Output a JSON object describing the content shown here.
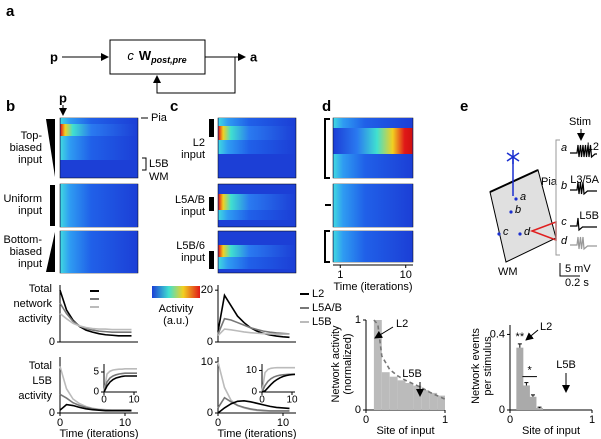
{
  "panel_a": {
    "label": "a",
    "input": "p",
    "gain": "c",
    "matrix": "W",
    "subscript": "post,pre",
    "output": "a"
  },
  "panel_b": {
    "label": "b",
    "input_marker": "p",
    "row_labels": [
      [
        "Top-",
        "biased",
        "input"
      ],
      [
        "Uniform",
        "input"
      ],
      [
        "Bottom-",
        "biased",
        "input"
      ]
    ],
    "layer_labels": {
      "pia": "Pia",
      "l5b": "L5B",
      "wm": "WM"
    },
    "colorbar_label": [
      "Activity",
      "(a.u.)"
    ],
    "network_chart": {
      "type": "line",
      "ylabel": [
        "Total",
        "network",
        "activity"
      ],
      "x": [
        0,
        1,
        2,
        3,
        4,
        5,
        6,
        7,
        8,
        9,
        10,
        11
      ],
      "xlim": [
        0,
        12
      ],
      "ylim": [
        0,
        1.1
      ],
      "yticks": [
        0
      ],
      "series": [
        {
          "color": "#000000",
          "values": [
            1.0,
            0.62,
            0.42,
            0.3,
            0.23,
            0.19,
            0.16,
            0.14,
            0.13,
            0.12,
            0.12,
            0.12
          ]
        },
        {
          "color": "#777777",
          "values": [
            0.75,
            0.55,
            0.4,
            0.31,
            0.26,
            0.23,
            0.21,
            0.2,
            0.19,
            0.19,
            0.19,
            0.19
          ]
        },
        {
          "color": "#bbbbbb",
          "values": [
            0.55,
            0.45,
            0.36,
            0.31,
            0.28,
            0.26,
            0.25,
            0.25,
            0.24,
            0.24,
            0.24,
            0.24
          ]
        }
      ]
    },
    "l5b_chart": {
      "type": "line",
      "ylabel": [
        "Total",
        "L5B",
        "activity"
      ],
      "xlabel": "Time (iterations)",
      "x": [
        0,
        1,
        2,
        3,
        4,
        5,
        6,
        7,
        8,
        9,
        10,
        11
      ],
      "xlim": [
        0,
        12
      ],
      "ylim": [
        0,
        6
      ],
      "xticks": [
        0,
        10
      ],
      "yticks": [
        0
      ],
      "series": [
        {
          "color": "#bbbbbb",
          "values": [
            5.0,
            2.6,
            1.5,
            1.0,
            0.7,
            0.5,
            0.4,
            0.35,
            0.3,
            0.3,
            0.3,
            0.3
          ]
        },
        {
          "color": "#777777",
          "values": [
            2.0,
            1.6,
            1.1,
            0.8,
            0.6,
            0.45,
            0.35,
            0.3,
            0.3,
            0.3,
            0.3,
            0.3
          ]
        },
        {
          "color": "#000000",
          "values": [
            0.3,
            0.9,
            0.8,
            0.6,
            0.45,
            0.35,
            0.3,
            0.25,
            0.25,
            0.25,
            0.25,
            0.25
          ]
        }
      ]
    },
    "l5b_inset": {
      "type": "line",
      "x": [
        0,
        1,
        2,
        3,
        4,
        5,
        6,
        7,
        8,
        9,
        10,
        11
      ],
      "xlim": [
        0,
        11
      ],
      "ylim": [
        0,
        7
      ],
      "xticks": [
        0,
        10
      ],
      "yticks": [
        0,
        5
      ],
      "series": [
        {
          "color": "#bbbbbb",
          "values": [
            0,
            4.5,
            5.2,
            5.5,
            5.6,
            5.7,
            5.7,
            5.8,
            5.8,
            5.8,
            5.8,
            5.8
          ]
        },
        {
          "color": "#777777",
          "values": [
            0,
            2.5,
            3.5,
            4.0,
            4.3,
            4.5,
            4.6,
            4.7,
            4.7,
            4.7,
            4.7,
            4.7
          ]
        },
        {
          "color": "#000000",
          "values": [
            0,
            1.5,
            2.5,
            3.1,
            3.5,
            3.7,
            3.9,
            4.0,
            4.0,
            4.0,
            4.0,
            4.0
          ]
        }
      ]
    }
  },
  "panel_c": {
    "label": "c",
    "row_labels": [
      [
        "L2",
        "input"
      ],
      [
        "L5A/B",
        "input"
      ],
      [
        "L5B/6",
        "input"
      ]
    ],
    "network_chart": {
      "type": "line",
      "x": [
        0,
        1,
        2,
        3,
        4,
        5,
        6,
        7,
        8,
        9,
        10,
        11
      ],
      "xlim": [
        0,
        12
      ],
      "ylim": [
        0,
        22
      ],
      "yticks": [
        0,
        20
      ],
      "series": [
        {
          "name": "L2",
          "color": "#000000",
          "values": [
            4,
            18,
            14,
            10,
            7.5,
            5.5,
            4.2,
            3.3,
            2.7,
            2.3,
            2,
            1.8
          ]
        },
        {
          "name": "L5A/B",
          "color": "#777777",
          "values": [
            3,
            9,
            8.5,
            7.5,
            6.5,
            5.5,
            4.8,
            4.2,
            3.8,
            3.5,
            3.3,
            3.1
          ]
        },
        {
          "name": "L5B",
          "color": "#bbbbbb",
          "values": [
            2.5,
            5,
            4.7,
            4.3,
            3.9,
            3.6,
            3.4,
            3.2,
            3.1,
            3,
            3,
            3
          ]
        }
      ]
    },
    "l5b_chart": {
      "type": "line",
      "xlabel": "Time (iterations)",
      "x": [
        0,
        1,
        2,
        3,
        4,
        5,
        6,
        7,
        8,
        9,
        10,
        11
      ],
      "xlim": [
        0,
        12
      ],
      "ylim": [
        0,
        11
      ],
      "xticks": [
        0,
        10
      ],
      "yticks": [
        0,
        10
      ],
      "series": [
        {
          "color": "#bbbbbb",
          "values": [
            10,
            5,
            2.5,
            1.5,
            1.0,
            0.7,
            0.5,
            0.4,
            0.4,
            0.4,
            0.4,
            0.4
          ]
        },
        {
          "color": "#777777",
          "values": [
            1,
            3,
            2.2,
            1.5,
            1.1,
            0.8,
            0.6,
            0.5,
            0.4,
            0.4,
            0.4,
            0.4
          ]
        },
        {
          "color": "#000000",
          "values": [
            0,
            1,
            1.8,
            2.3,
            2.4,
            2.2,
            1.9,
            1.6,
            1.3,
            1.1,
            1,
            0.9
          ]
        }
      ]
    },
    "l5b_inset": {
      "type": "line",
      "x": [
        0,
        1,
        2,
        3,
        4,
        5,
        6,
        7,
        8,
        9,
        10,
        11
      ],
      "xlim": [
        0,
        11
      ],
      "ylim": [
        0,
        13
      ],
      "xticks": [
        0,
        10
      ],
      "yticks": [
        0,
        10
      ],
      "series": [
        {
          "color": "#bbbbbb",
          "values": [
            0,
            9,
            10.5,
            11,
            11.2,
            11.3,
            11.3,
            11.3,
            11.3,
            11.3,
            11.3,
            11.3
          ]
        },
        {
          "color": "#777777",
          "values": [
            0,
            3,
            5,
            6.2,
            7,
            7.5,
            7.8,
            8,
            8.1,
            8.2,
            8.2,
            8.2
          ]
        },
        {
          "color": "#000000",
          "values": [
            0,
            0.5,
            2,
            3.5,
            4.8,
            5.8,
            6.6,
            7.2,
            7.6,
            7.9,
            8.1,
            8.2
          ]
        }
      ]
    }
  },
  "panel_d": {
    "label": "d",
    "time_axis": {
      "xlim": [
        0,
        11
      ],
      "xticks": [
        1,
        10
      ],
      "xlabel": "Time (iterations)"
    },
    "chart": {
      "type": "histogram",
      "ylabel": [
        "Network activity",
        "(normalized)"
      ],
      "xlabel": "Site of input",
      "bins": [
        0.1,
        0.2,
        0.3,
        0.4,
        0.5,
        0.6,
        0.7,
        0.8,
        0.9,
        1.0
      ],
      "counts": [
        1.0,
        0.42,
        0.37,
        0.33,
        0.3,
        0.27,
        0.22,
        0.19,
        0.16
      ],
      "color": "#bbbbbb",
      "trend": {
        "x": [
          0.1,
          0.15,
          0.2,
          0.3,
          0.4,
          0.5,
          0.6,
          0.7,
          0.8,
          0.9,
          1.0
        ],
        "values": [
          1.0,
          0.95,
          0.6,
          0.45,
          0.38,
          0.33,
          0.29,
          0.25,
          0.2,
          0.16,
          0.12
        ],
        "color": "#777777"
      },
      "xlim": [
        0,
        1
      ],
      "ylim": [
        0,
        1
      ],
      "xticks": [
        0,
        1
      ],
      "yticks": [
        0,
        1
      ],
      "annotations": [
        "L2",
        "L5B"
      ]
    }
  },
  "panel_e": {
    "label": "e",
    "stim": "Stim",
    "pia": "Pia",
    "wm": "WM",
    "cells": [
      "a",
      "b",
      "c",
      "d"
    ],
    "trace_labels": [
      "L2",
      "L3/5A",
      "L5B"
    ],
    "scale": [
      "5 mV",
      "0.2 s"
    ],
    "chart": {
      "type": "bar",
      "ylabel": [
        "Network events",
        "per stimulus"
      ],
      "xlabel": "Site of input",
      "x": [
        0.12,
        0.2,
        0.28,
        0.36
      ],
      "values": [
        0.33,
        0.13,
        0.07,
        0.01
      ],
      "errors": [
        0.02,
        0.015,
        0.01,
        0.005
      ],
      "color": "#aaaaaa",
      "xlim": [
        0,
        1
      ],
      "ylim": [
        0,
        0.45
      ],
      "xticks": [
        0,
        1
      ],
      "yticks": [
        0,
        0.4
      ],
      "significance": [
        "**",
        "*"
      ],
      "annotations": [
        "L2",
        "L5B"
      ]
    }
  }
}
